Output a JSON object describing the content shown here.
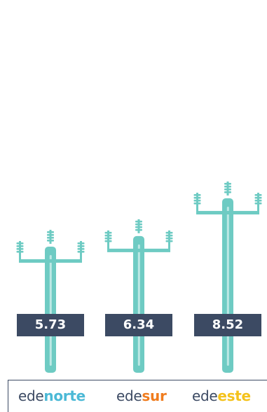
{
  "chart_data": {
    "type": "bar",
    "categories": [
      "edenorte",
      "edesur",
      "edeeste"
    ],
    "values": [
      5.73,
      6.34,
      8.52
    ],
    "value_labels": [
      "5.73",
      "6.34",
      "8.52"
    ],
    "title": "",
    "xlabel": "",
    "ylabel": ""
  },
  "legend": [
    {
      "prefix": "ede",
      "suffix": "norte",
      "color": "#4bb9d6"
    },
    {
      "prefix": "ede",
      "suffix": "sur",
      "color": "#f07c1e"
    },
    {
      "prefix": "ede",
      "suffix": "este",
      "color": "#f4c21c"
    }
  ],
  "colors": {
    "pole": "#6ecbc3",
    "pole_highlight": "#bde8e4",
    "label_box": "#3c4a63",
    "label_text": "#ffffff"
  }
}
